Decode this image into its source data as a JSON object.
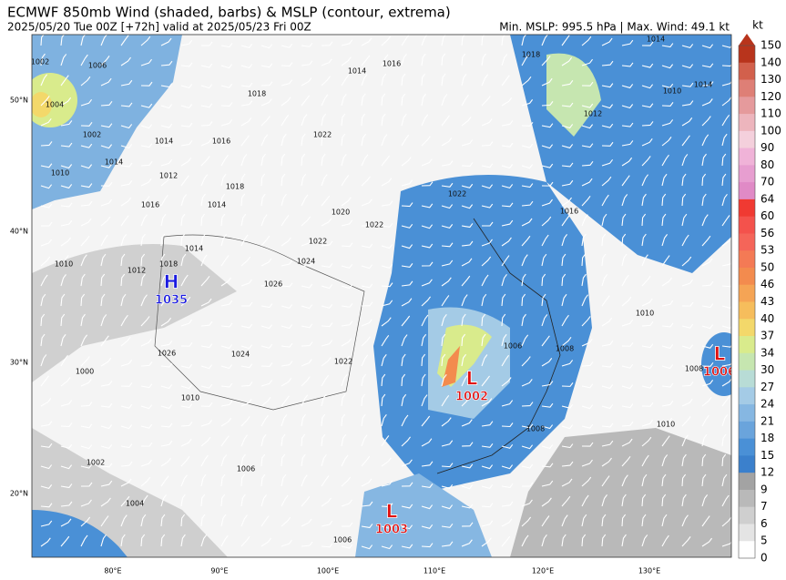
{
  "header": {
    "title": "ECMWF 850mb Wind (shaded, barbs) & MSLP (contour, extrema)",
    "subtitle": "2025/05/20 Tue 00Z [+72h] valid at 2025/05/23 Fri 00Z",
    "info": "Min. MSLP: 995.5 hPa | Max. Wind: 49.1 kt"
  },
  "colorbar": {
    "unit": "kt",
    "levels": [
      150,
      140,
      130,
      120,
      110,
      100,
      90,
      80,
      70,
      64,
      60,
      56,
      53,
      50,
      46,
      43,
      40,
      37,
      34,
      30,
      27,
      24,
      21,
      18,
      15,
      12,
      9,
      7,
      6,
      5,
      0
    ],
    "colors": [
      "#b8341c",
      "#d2604c",
      "#de7f76",
      "#e59a9c",
      "#edb5bd",
      "#f4d0dc",
      "#f0b3d8",
      "#e79ed0",
      "#e08ac6",
      "#f03a32",
      "#f4524c",
      "#f56559",
      "#f47a55",
      "#f38b4e",
      "#f5a455",
      "#f6bd5c",
      "#f3d86a",
      "#d9eb8c",
      "#c6e6b0",
      "#b8dcd6",
      "#a4cbe6",
      "#86b7e2",
      "#6aa4dc",
      "#4a90d6",
      "#3b80cc",
      "#a3a3a3",
      "#b9b9b9",
      "#cfcfcf",
      "#e4e4e4",
      "#ffffff"
    ]
  },
  "latitudes": [
    "50°N",
    "40°N",
    "30°N",
    "20°N"
  ],
  "longitudes": [
    "80°E",
    "90°E",
    "100°E",
    "110°E",
    "120°E",
    "130°E"
  ],
  "centers": [
    {
      "symbol": "H",
      "value": 1035,
      "color": "#1a1ae0"
    },
    {
      "symbol": "L",
      "value": 1002,
      "color": "#e01010"
    },
    {
      "symbol": "L",
      "value": 1003,
      "color": "#e01010"
    },
    {
      "symbol": "L",
      "value": 1006,
      "color": "#e01010"
    }
  ],
  "contour_labels": [
    1002,
    1004,
    1006,
    1002,
    1010,
    1014,
    1012,
    1016,
    1014,
    1018,
    1018,
    1014,
    1016,
    1022,
    1014,
    1016,
    1020,
    1022,
    1022,
    1016,
    1018,
    1014,
    1010,
    1014,
    1012,
    1010,
    1012,
    1014,
    1018,
    1026,
    1024,
    1022,
    1026,
    1024,
    1022,
    1006,
    1008,
    1010,
    1008,
    1010,
    1008,
    1002,
    1006,
    1004,
    1000,
    1006,
    1010
  ]
}
